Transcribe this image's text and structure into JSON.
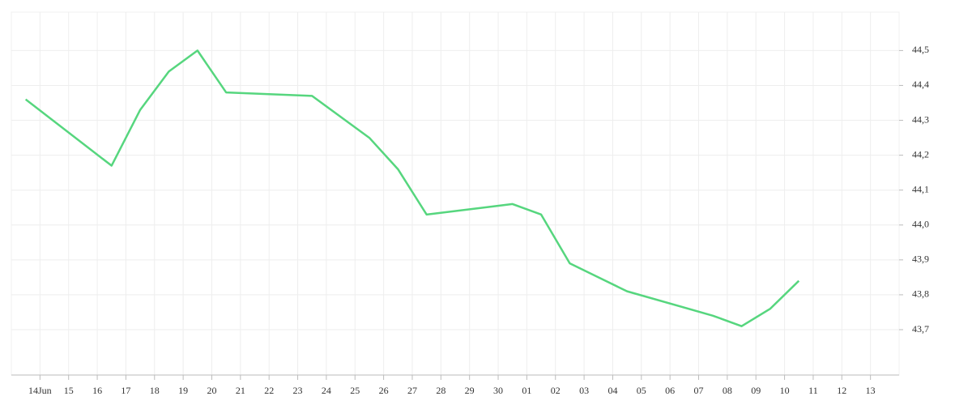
{
  "chart_data": {
    "type": "line",
    "x": [
      -0.5,
      2.5,
      3.5,
      4.5,
      5.5,
      6.5,
      9.5,
      11.5,
      12.5,
      13.5,
      16.5,
      17.5,
      18.5,
      19.5,
      20.5,
      23.5,
      24.5,
      25.5,
      26.5
    ],
    "values": [
      44.36,
      44.17,
      44.33,
      44.44,
      44.5,
      44.38,
      44.37,
      44.25,
      44.16,
      44.03,
      44.06,
      44.03,
      43.89,
      43.85,
      43.81,
      43.74,
      43.71,
      43.76,
      43.84
    ],
    "color": "#56d67e",
    "xlim": [
      -1,
      30
    ],
    "xticks": [
      {
        "value": 0,
        "label": "14Jun"
      },
      {
        "value": 1,
        "label": "15"
      },
      {
        "value": 2,
        "label": "16"
      },
      {
        "value": 3,
        "label": "17"
      },
      {
        "value": 4,
        "label": "18"
      },
      {
        "value": 5,
        "label": "19"
      },
      {
        "value": 6,
        "label": "20"
      },
      {
        "value": 7,
        "label": "21"
      },
      {
        "value": 8,
        "label": "22"
      },
      {
        "value": 9,
        "label": "23"
      },
      {
        "value": 10,
        "label": "24"
      },
      {
        "value": 11,
        "label": "25"
      },
      {
        "value": 12,
        "label": "26"
      },
      {
        "value": 13,
        "label": "27"
      },
      {
        "value": 14,
        "label": "28"
      },
      {
        "value": 15,
        "label": "29"
      },
      {
        "value": 16,
        "label": "30"
      },
      {
        "value": 17,
        "label": "01"
      },
      {
        "value": 18,
        "label": "02"
      },
      {
        "value": 19,
        "label": "03"
      },
      {
        "value": 20,
        "label": "04"
      },
      {
        "value": 21,
        "label": "05"
      },
      {
        "value": 22,
        "label": "06"
      },
      {
        "value": 23,
        "label": "07"
      },
      {
        "value": 24,
        "label": "08"
      },
      {
        "value": 25,
        "label": "09"
      },
      {
        "value": 26,
        "label": "10"
      },
      {
        "value": 27,
        "label": "11"
      },
      {
        "value": 28,
        "label": "12"
      },
      {
        "value": 29,
        "label": "13"
      }
    ],
    "ylim": [
      43.57,
      44.61
    ],
    "yticks": [
      {
        "value": 43.7,
        "label": "43,7"
      },
      {
        "value": 43.8,
        "label": "43,8"
      },
      {
        "value": 43.9,
        "label": "43,9"
      },
      {
        "value": 44.0,
        "label": "44,0"
      },
      {
        "value": 44.1,
        "label": "44,1"
      },
      {
        "value": 44.2,
        "label": "44,2"
      },
      {
        "value": 44.3,
        "label": "44,3"
      },
      {
        "value": 44.4,
        "label": "44,4"
      },
      {
        "value": 44.5,
        "label": "44,5"
      }
    ],
    "grid": true
  }
}
